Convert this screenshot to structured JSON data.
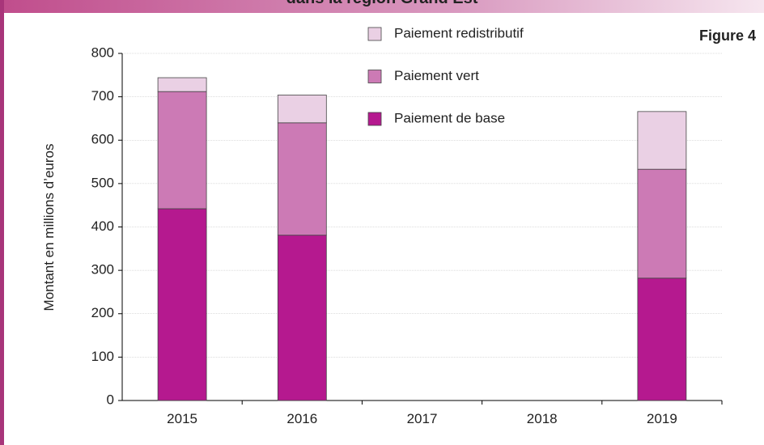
{
  "chart_data": {
    "type": "stacked_bar",
    "title": "dans la région Grand Est",
    "figure_label": "Figure 4",
    "y_label": "Montant en millions d’euros",
    "categories": [
      "2015",
      "2016",
      "2017",
      "2018",
      "2019"
    ],
    "series": [
      {
        "name": "Paiement de base",
        "color": "#b5198f",
        "values": [
          442,
          381,
          null,
          null,
          282
        ]
      },
      {
        "name": "Paiement vert",
        "color": "#cc7ab5",
        "values": [
          270,
          259,
          null,
          null,
          251
        ]
      },
      {
        "name": "Paiement redistributif",
        "color": "#ead0e4",
        "values": [
          32,
          64,
          null,
          null,
          133
        ]
      }
    ],
    "ylim": [
      0,
      800
    ],
    "yticks": [
      0,
      100,
      200,
      300,
      400,
      500,
      600,
      700,
      800
    ],
    "grid": true
  }
}
